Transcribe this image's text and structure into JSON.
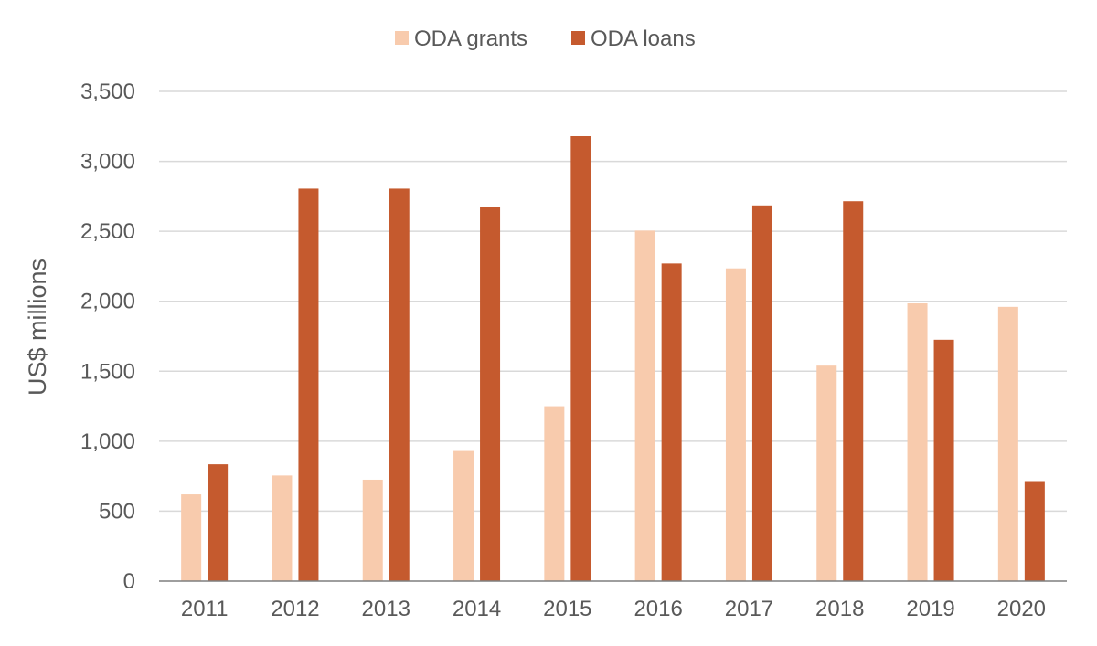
{
  "chart_data": {
    "type": "bar",
    "categories": [
      "2011",
      "2012",
      "2013",
      "2014",
      "2015",
      "2016",
      "2017",
      "2018",
      "2019",
      "2020"
    ],
    "series": [
      {
        "name": "ODA grants",
        "color": "#F8CBAD",
        "values": [
          620,
          755,
          725,
          930,
          1250,
          2505,
          2235,
          1540,
          1985,
          1960
        ]
      },
      {
        "name": "ODA loans",
        "color": "#C55A2E",
        "values": [
          835,
          2805,
          2805,
          2675,
          3180,
          2270,
          2685,
          2715,
          1725,
          715
        ]
      }
    ],
    "ylabel": "US$ millions",
    "ylim": [
      0,
      3500
    ],
    "yticks": [
      0,
      500,
      1000,
      1500,
      2000,
      2500,
      3000,
      3500
    ],
    "ytick_labels": [
      "0",
      "500",
      "1,000",
      "1,500",
      "2,000",
      "2,500",
      "3,000",
      "3,500"
    ],
    "grid": true,
    "legend_position": "top-center"
  }
}
